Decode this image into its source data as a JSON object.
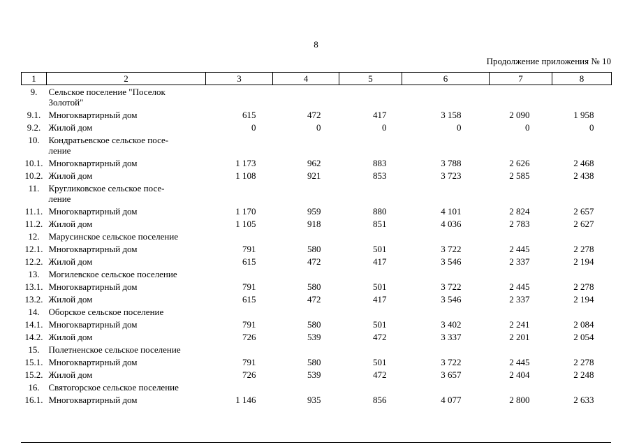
{
  "page": {
    "number": "8",
    "continuation": "Продолжение приложения № 10"
  },
  "table": {
    "header": [
      "1",
      "2",
      "3",
      "4",
      "5",
      "6",
      "7",
      "8"
    ],
    "rows": [
      {
        "num": "9.",
        "name": "Сельское поселение \"Поселок\nЗолотой\"",
        "values": [
          "",
          "",
          "",
          "",
          "",
          ""
        ]
      },
      {
        "num": "9.1.",
        "name": "Многоквартирный дом",
        "values": [
          "615",
          "472",
          "417",
          "3 158",
          "2 090",
          "1 958"
        ]
      },
      {
        "num": "9.2.",
        "name": "Жилой дом",
        "values": [
          "0",
          "0",
          "0",
          "0",
          "0",
          "0"
        ]
      },
      {
        "num": "10.",
        "name": "Кондратьевское сельское посе-\nление",
        "values": [
          "",
          "",
          "",
          "",
          "",
          ""
        ]
      },
      {
        "num": "10.1.",
        "name": "Многоквартирный дом",
        "values": [
          "1 173",
          "962",
          "883",
          "3 788",
          "2 626",
          "2 468"
        ]
      },
      {
        "num": "10.2.",
        "name": "Жилой дом",
        "values": [
          "1 108",
          "921",
          "853",
          "3 723",
          "2 585",
          "2 438"
        ]
      },
      {
        "num": "11.",
        "name": "Кругликовское сельское посе-\nление",
        "values": [
          "",
          "",
          "",
          "",
          "",
          ""
        ]
      },
      {
        "num": "11.1.",
        "name": "Многоквартирный дом",
        "values": [
          "1 170",
          "959",
          "880",
          "4 101",
          "2 824",
          "2 657"
        ]
      },
      {
        "num": "11.2.",
        "name": "Жилой дом",
        "values": [
          "1 105",
          "918",
          "851",
          "4 036",
          "2 783",
          "2 627"
        ]
      },
      {
        "num": "12.",
        "name": "Марусинское сельское поселение",
        "values": [
          "",
          "",
          "",
          "",
          "",
          ""
        ]
      },
      {
        "num": "12.1.",
        "name": "Многоквартирный дом",
        "values": [
          "791",
          "580",
          "501",
          "3 722",
          "2 445",
          "2 278"
        ]
      },
      {
        "num": "12.2.",
        "name": "Жилой дом",
        "values": [
          "615",
          "472",
          "417",
          "3 546",
          "2 337",
          "2 194"
        ]
      },
      {
        "num": "13.",
        "name": "Могилевское сельское поселение",
        "values": [
          "",
          "",
          "",
          "",
          "",
          ""
        ]
      },
      {
        "num": "13.1.",
        "name": "Многоквартирный дом",
        "values": [
          "791",
          "580",
          "501",
          "3 722",
          "2 445",
          "2 278"
        ]
      },
      {
        "num": "13.2.",
        "name": "Жилой дом",
        "values": [
          "615",
          "472",
          "417",
          "3 546",
          "2 337",
          "2 194"
        ]
      },
      {
        "num": "14.",
        "name": "Оборское сельское поселение",
        "values": [
          "",
          "",
          "",
          "",
          "",
          ""
        ]
      },
      {
        "num": "14.1.",
        "name": "Многоквартирный дом",
        "values": [
          "791",
          "580",
          "501",
          "3 402",
          "2 241",
          "2 084"
        ]
      },
      {
        "num": "14.2.",
        "name": "Жилой дом",
        "values": [
          "726",
          "539",
          "472",
          "3 337",
          "2 201",
          "2 054"
        ]
      },
      {
        "num": "15.",
        "name": "Полетненское сельское поселение",
        "values": [
          "",
          "",
          "",
          "",
          "",
          ""
        ]
      },
      {
        "num": "15.1.",
        "name": "Многоквартирный дом",
        "values": [
          "791",
          "580",
          "501",
          "3 722",
          "2 445",
          "2 278"
        ]
      },
      {
        "num": "15.2.",
        "name": "Жилой дом",
        "values": [
          "726",
          "539",
          "472",
          "3 657",
          "2 404",
          "2 248"
        ]
      },
      {
        "num": "16.",
        "name": "Святогорское сельское поселение",
        "values": [
          "",
          "",
          "",
          "",
          "",
          ""
        ]
      },
      {
        "num": "16.1.",
        "name": "Многоквартирный дом",
        "values": [
          "1 146",
          "935",
          "856",
          "4 077",
          "2 800",
          "2 633"
        ]
      }
    ]
  }
}
